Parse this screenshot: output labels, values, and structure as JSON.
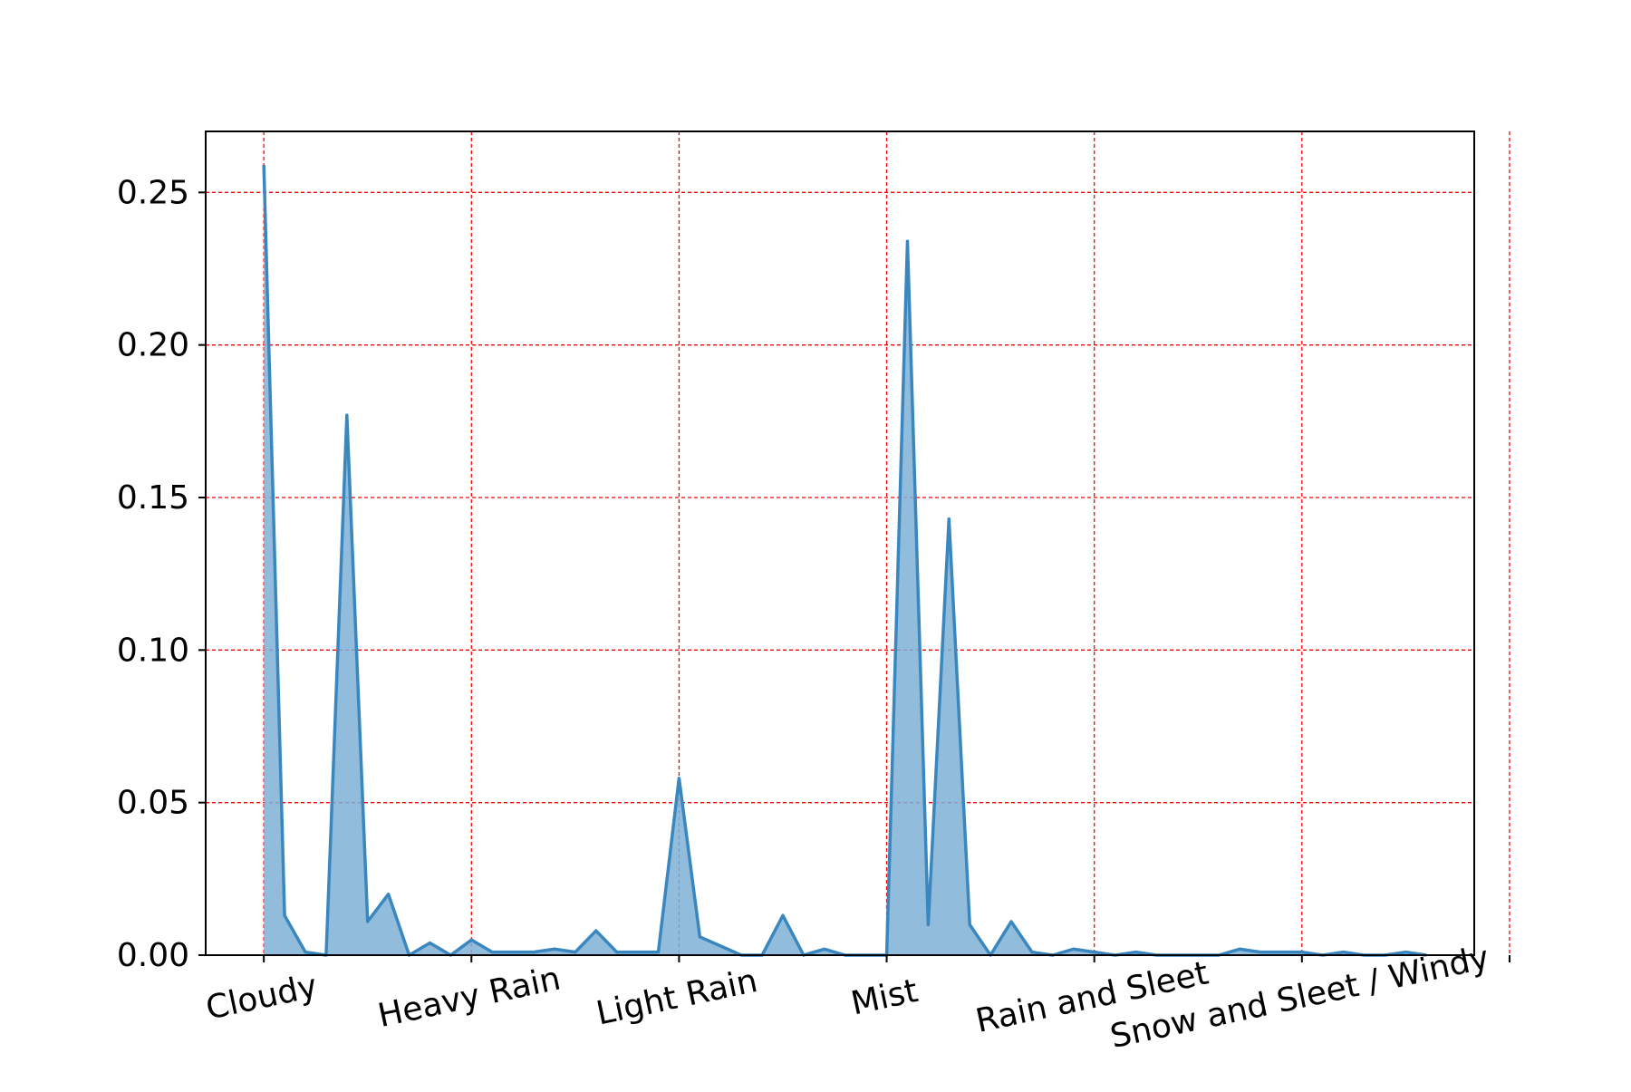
{
  "colors": {
    "series_line": "#3a87bf",
    "series_fill": "#7fb0d6",
    "grid": "#ff0000",
    "axes": "#000000",
    "background": "#ffffff"
  },
  "chart_data": {
    "type": "area",
    "title": "",
    "xlabel": "",
    "ylabel": "",
    "grid": true,
    "grid_style": "dashed",
    "legend": false,
    "xlim": [
      -2.8,
      58.3
    ],
    "ylim": [
      0,
      0.27
    ],
    "x_tick_positions": [
      0,
      10,
      20,
      30,
      40,
      50,
      60
    ],
    "x_tick_labels": [
      "Cloudy",
      "Heavy Rain",
      "Light Rain",
      "Mist",
      "Rain and Sleet",
      "Snow and Sleet / Windy",
      ""
    ],
    "y_ticks": [
      0.0,
      0.05,
      0.1,
      0.15,
      0.2,
      0.25
    ],
    "y_tick_labels": [
      "0.00",
      "0.05",
      "0.10",
      "0.15",
      "0.20",
      "0.25"
    ],
    "series": [
      {
        "x": [
          0,
          1,
          2,
          3,
          4,
          5,
          6,
          7,
          8,
          9,
          10,
          11,
          12,
          13,
          14,
          15,
          16,
          17,
          18,
          19,
          20,
          21,
          22,
          23,
          24,
          25,
          26,
          27,
          28,
          29,
          30,
          31,
          32,
          33,
          34,
          35,
          36,
          37,
          38,
          39,
          40,
          41,
          42,
          43,
          44,
          45,
          46,
          47,
          48,
          49,
          50,
          51,
          52,
          53,
          54,
          55,
          56
        ],
        "values": [
          0.259,
          0.013,
          0.001,
          0.0,
          0.177,
          0.011,
          0.02,
          0.0,
          0.004,
          0.0,
          0.005,
          0.001,
          0.001,
          0.001,
          0.002,
          0.001,
          0.008,
          0.001,
          0.001,
          0.001,
          0.058,
          0.006,
          0.003,
          0.0,
          0.0,
          0.013,
          0.0,
          0.002,
          0.0,
          0.0,
          0.0,
          0.234,
          0.01,
          0.143,
          0.01,
          0.0,
          0.011,
          0.001,
          0.0,
          0.002,
          0.001,
          0.0,
          0.001,
          0.0,
          0.0,
          0.0,
          0.0,
          0.002,
          0.001,
          0.001,
          0.001,
          0.0,
          0.001,
          0.0,
          0.0,
          0.001,
          0.0
        ]
      }
    ]
  }
}
